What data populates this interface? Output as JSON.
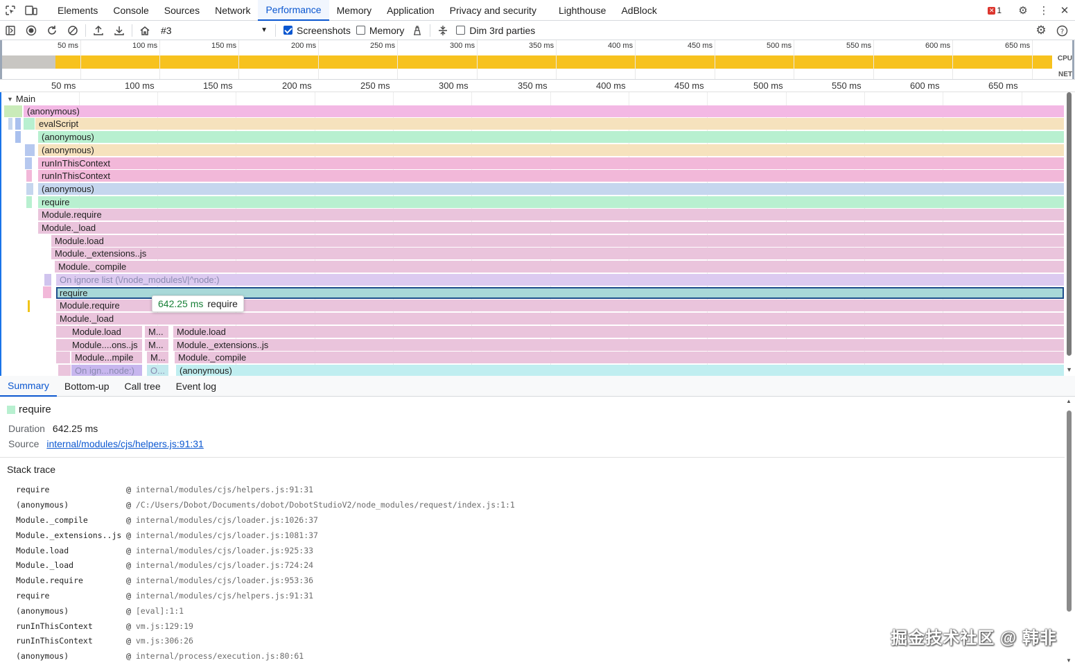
{
  "tabs": [
    "Elements",
    "Console",
    "Sources",
    "Network",
    "Performance",
    "Memory",
    "Application",
    "Privacy and security",
    "Lighthouse",
    "AdBlock"
  ],
  "active_tab": "Performance",
  "error_count": "1",
  "toolbar": {
    "profile": "#3",
    "screenshots_label": "Screenshots",
    "memory_label": "Memory",
    "dim_label": "Dim 3rd parties"
  },
  "overview": {
    "ticks": [
      "50 ms",
      "100 ms",
      "150 ms",
      "200 ms",
      "250 ms",
      "300 ms",
      "350 ms",
      "400 ms",
      "450 ms",
      "500 ms",
      "550 ms",
      "600 ms",
      "650 ms"
    ],
    "cpu_label": "CPU",
    "net_label": "NET"
  },
  "ruler": [
    "50 ms",
    "100 ms",
    "150 ms",
    "200 ms",
    "250 ms",
    "300 ms",
    "350 ms",
    "400 ms",
    "450 ms",
    "500 ms",
    "550 ms",
    "600 ms",
    "650 ms"
  ],
  "flame": {
    "track": "Main",
    "rows": [
      "(anonymous)",
      "evalScript",
      "(anonymous)",
      "(anonymous)",
      "runInThisContext",
      "runInThisContext",
      "(anonymous)",
      "require",
      "Module.require",
      "Module._load",
      "Module.load",
      "Module._extensions..js",
      "Module._compile",
      "On ignore list (\\/node_modules\\/|^node:)",
      "require",
      "Module.require",
      "Module._load"
    ],
    "sub": {
      "r1": [
        "Module.load",
        "M...",
        "Module.load"
      ],
      "r2": [
        "Module....ons..js",
        "M...",
        "Module._extensions..js"
      ],
      "r3": [
        "Module...mpile",
        "M...",
        "Module._compile"
      ],
      "r4": [
        "On ign...node:)",
        "O...",
        "(anonymous)"
      ]
    },
    "tooltip_duration": "642.25 ms",
    "tooltip_name": "require"
  },
  "bottom_tabs": [
    "Summary",
    "Bottom-up",
    "Call tree",
    "Event log"
  ],
  "summary": {
    "title": "require",
    "duration_label": "Duration",
    "duration": "642.25 ms",
    "source_label": "Source",
    "source": "internal/modules/cjs/helpers.js:91:31",
    "stack_title": "Stack trace",
    "stack": [
      {
        "fn": "require",
        "loc": "internal/modules/cjs/helpers.js:91:31"
      },
      {
        "fn": "(anonymous)",
        "loc": "/C:/Users/Dobot/Documents/dobot/DobotStudioV2/node_modules/request/index.js:1:1"
      },
      {
        "fn": "Module._compile",
        "loc": "internal/modules/cjs/loader.js:1026:37"
      },
      {
        "fn": "Module._extensions..js",
        "loc": "internal/modules/cjs/loader.js:1081:37"
      },
      {
        "fn": "Module.load",
        "loc": "internal/modules/cjs/loader.js:925:33"
      },
      {
        "fn": "Module._load",
        "loc": "internal/modules/cjs/loader.js:724:24"
      },
      {
        "fn": "Module.require",
        "loc": "internal/modules/cjs/loader.js:953:36"
      },
      {
        "fn": "require",
        "loc": "internal/modules/cjs/helpers.js:91:31"
      },
      {
        "fn": "(anonymous)",
        "loc": "[eval]:1:1"
      },
      {
        "fn": "runInThisContext",
        "loc": "vm.js:129:19"
      },
      {
        "fn": "runInThisContext",
        "loc": "vm.js:306:26"
      },
      {
        "fn": "(anonymous)",
        "loc": "internal/process/execution.js:80:61"
      }
    ],
    "at": "@"
  },
  "watermark": "掘金技术社区 @ 韩非"
}
